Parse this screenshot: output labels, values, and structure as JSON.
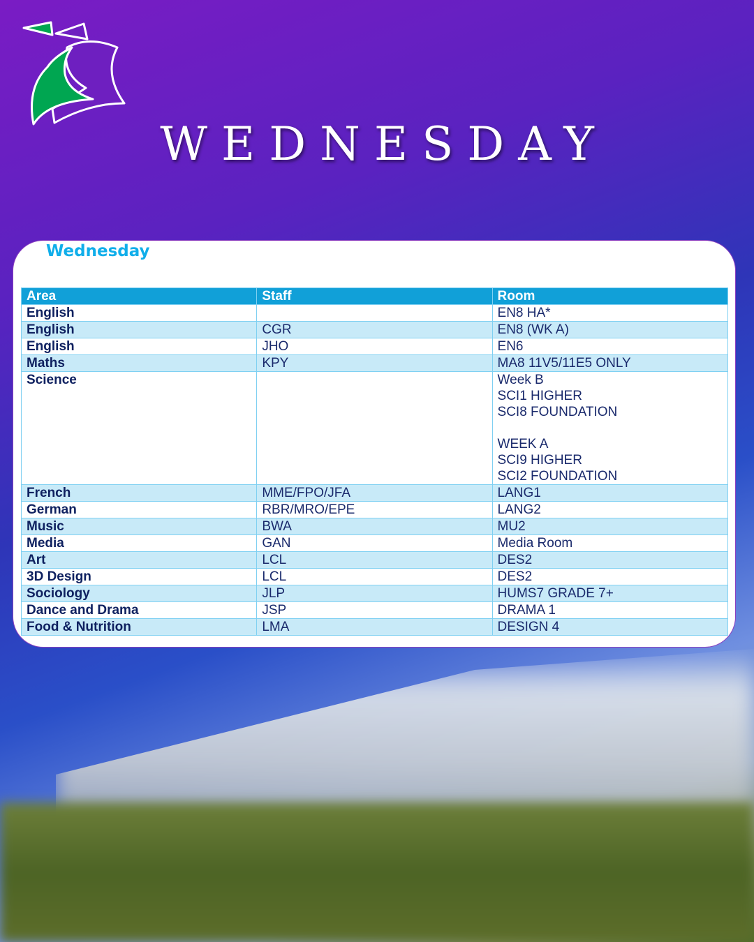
{
  "header": {
    "title": "WEDNESDAY"
  },
  "colors": {
    "brand_green": "#00a651",
    "header_blue": "#11a0d8",
    "title_blue": "#10aeea"
  },
  "card": {
    "title": "Wednesday",
    "columns": [
      "Area",
      "Staff",
      "Room"
    ],
    "rows": [
      [
        "English",
        "",
        "EN8 HA*"
      ],
      [
        "English",
        "CGR",
        "EN8 (WK A)"
      ],
      [
        "English",
        "JHO",
        "EN6"
      ],
      [
        "Maths",
        "KPY",
        "MA8 11V5/11E5 ONLY"
      ],
      [
        "Science",
        "",
        "Week B\nSCI1 HIGHER\nSCI8 FOUNDATION\n\nWEEK A\nSCI9 HIGHER\nSCI2 FOUNDATION"
      ],
      [
        "French",
        "MME/FPO/JFA",
        "LANG1"
      ],
      [
        "German",
        "RBR/MRO/EPE",
        "LANG2"
      ],
      [
        "Music",
        "BWA",
        "MU2"
      ],
      [
        "Media",
        "GAN",
        "Media Room"
      ],
      [
        "Art",
        "LCL",
        "DES2"
      ],
      [
        "3D Design",
        "LCL",
        "DES2"
      ],
      [
        "Sociology",
        "JLP",
        "HUMS7 GRADE 7+"
      ],
      [
        "Dance and Drama",
        "JSP",
        "DRAMA 1"
      ],
      [
        "Food & Nutrition",
        "LMA",
        "DESIGN 4"
      ]
    ]
  }
}
